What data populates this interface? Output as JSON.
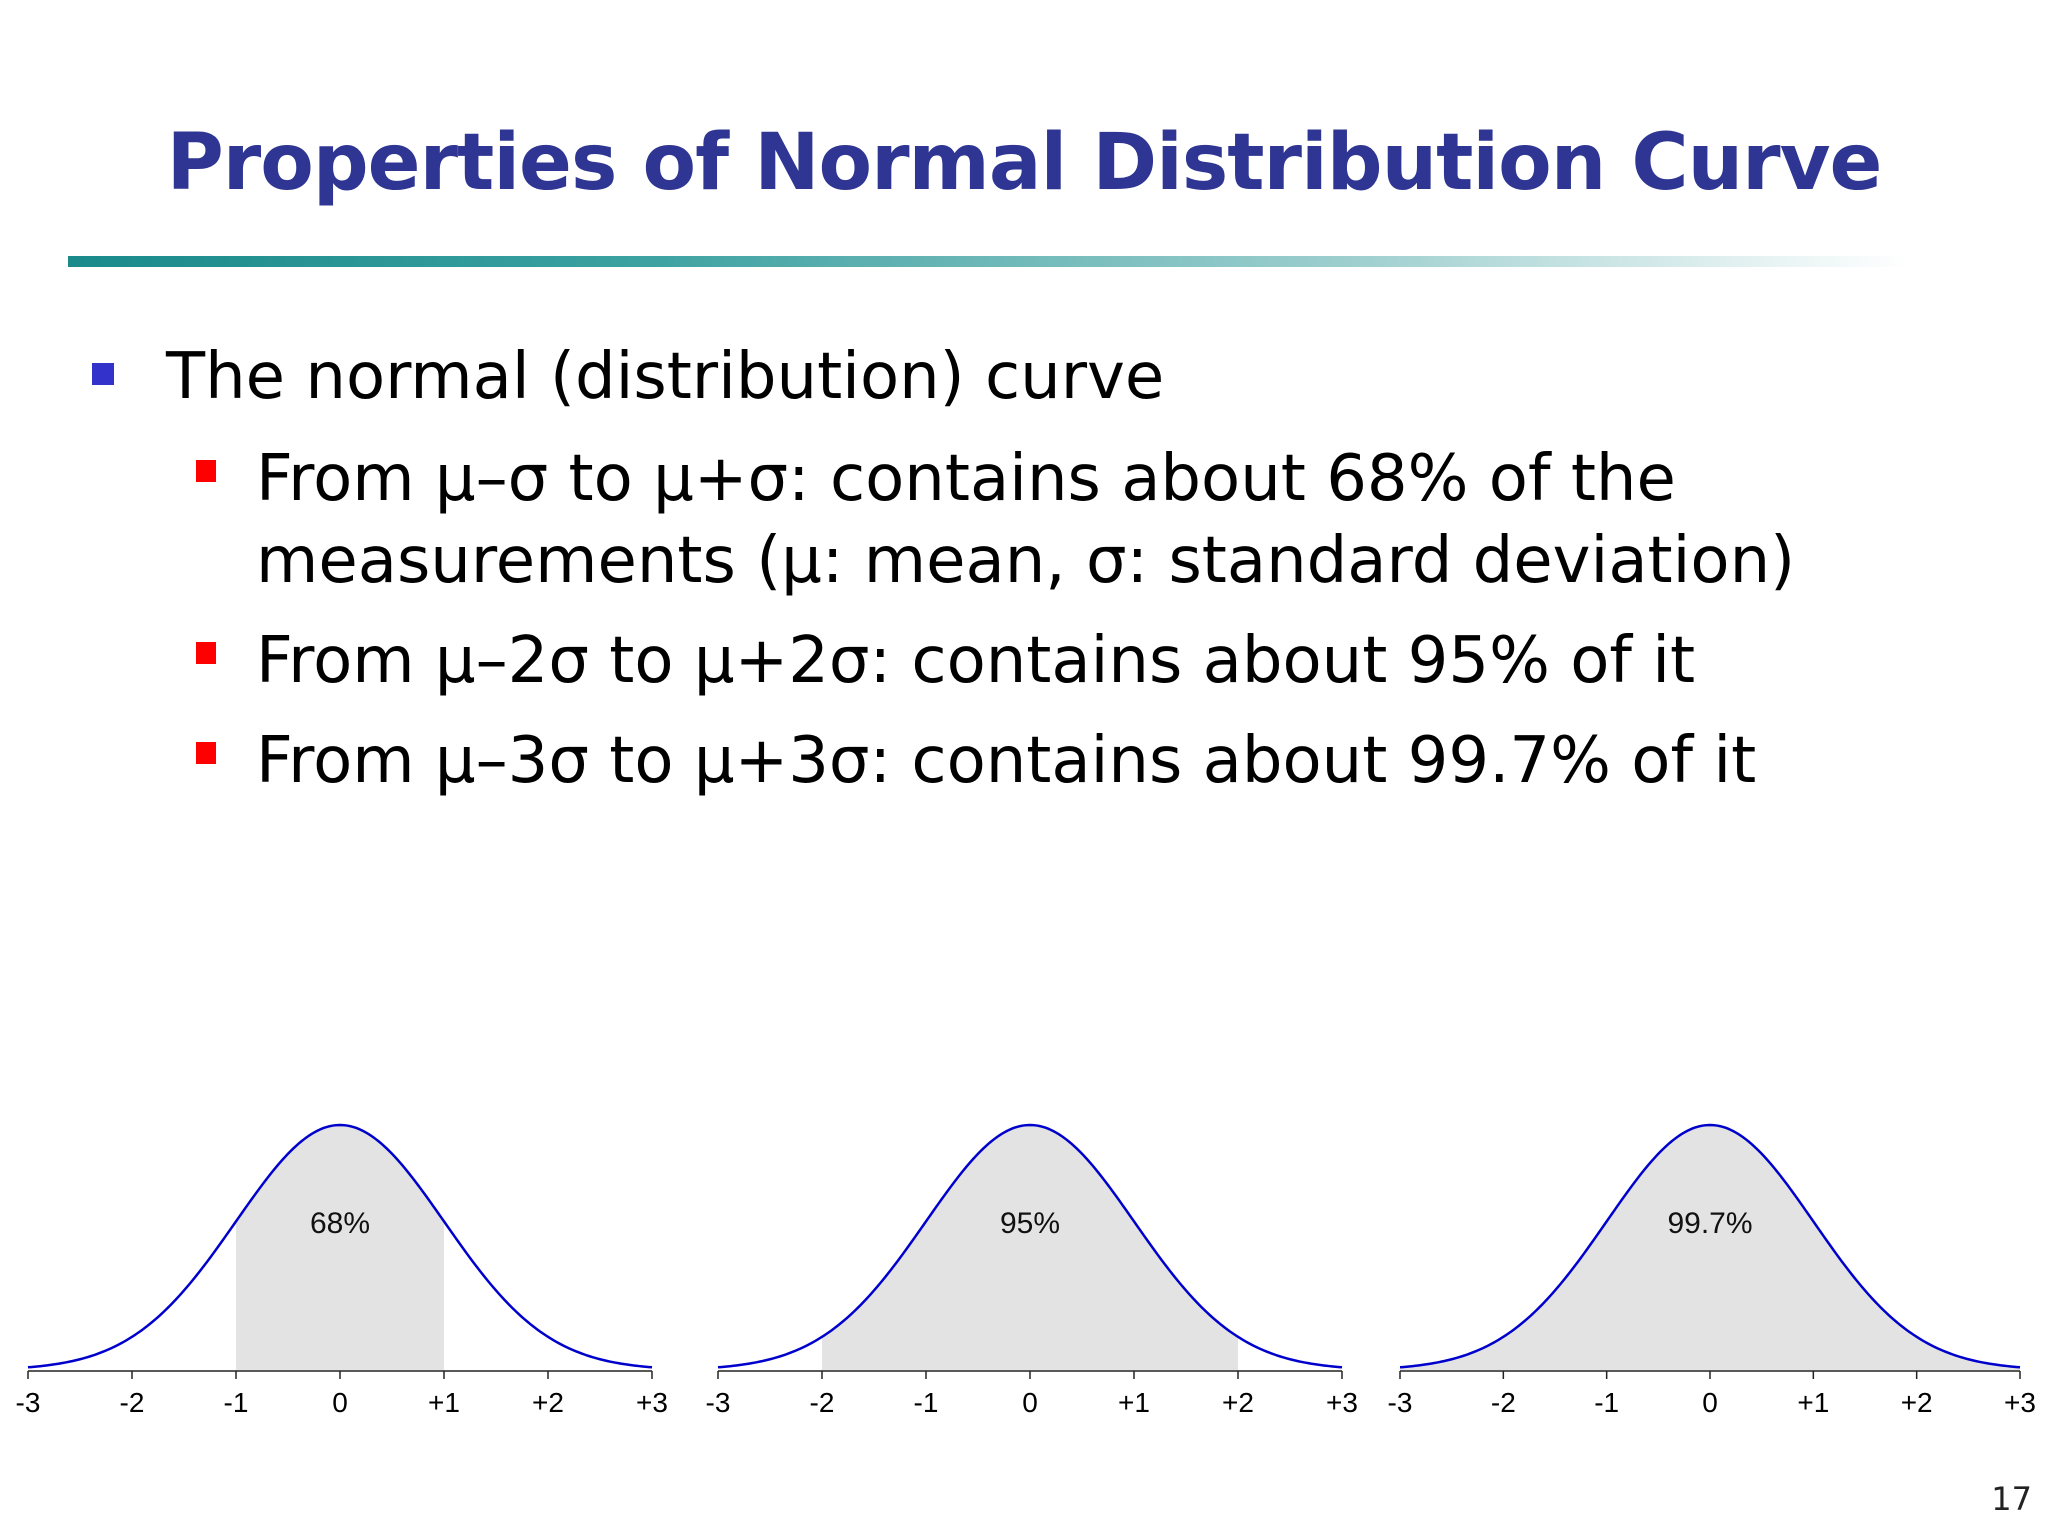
{
  "slide": {
    "title": "Properties of Normal Distribution Curve",
    "page_number": "17",
    "colors": {
      "title": "#2E3592",
      "bullet_level1": "#3333CC",
      "bullet_level2": "#FF0000",
      "curve": "#0000CC",
      "shade": "#E3E3E3",
      "rule": "#1A8A8A"
    },
    "bullets": {
      "level1": "The normal (distribution) curve",
      "items": [
        {
          "line1": "From μ–σ to μ+σ: contains about 68% of the",
          "line2": "measurements  (μ: mean, σ: standard deviation)"
        },
        {
          "line1": " From μ–2σ to μ+2σ: contains about 95% of it",
          "line2": ""
        },
        {
          "line1": "From μ–3σ to μ+3σ: contains about 99.7% of it",
          "line2": ""
        }
      ]
    }
  },
  "chart_data": [
    {
      "type": "area",
      "distribution": "standard normal",
      "x": [
        -3,
        -2.5,
        -2,
        -1.5,
        -1,
        -0.5,
        0,
        0.5,
        1,
        1.5,
        2,
        2.5,
        3
      ],
      "y": [
        0.004,
        0.018,
        0.054,
        0.13,
        0.242,
        0.352,
        0.399,
        0.352,
        0.242,
        0.13,
        0.054,
        0.018,
        0.004
      ],
      "shaded_range": [
        -1,
        1
      ],
      "annotation": "68%",
      "xlim": [
        -3,
        3
      ],
      "xtick_labels": [
        "-3",
        "-2",
        "-1",
        "0",
        "+1",
        "+2",
        "+3"
      ],
      "grid": false
    },
    {
      "type": "area",
      "distribution": "standard normal",
      "x": [
        -3,
        -2.5,
        -2,
        -1.5,
        -1,
        -0.5,
        0,
        0.5,
        1,
        1.5,
        2,
        2.5,
        3
      ],
      "y": [
        0.004,
        0.018,
        0.054,
        0.13,
        0.242,
        0.352,
        0.399,
        0.352,
        0.242,
        0.13,
        0.054,
        0.018,
        0.004
      ],
      "shaded_range": [
        -2,
        2
      ],
      "annotation": "95%",
      "xlim": [
        -3,
        3
      ],
      "xtick_labels": [
        "-3",
        "-2",
        "-1",
        "0",
        "+1",
        "+2",
        "+3"
      ],
      "grid": false
    },
    {
      "type": "area",
      "distribution": "standard normal",
      "x": [
        -3,
        -2.5,
        -2,
        -1.5,
        -1,
        -0.5,
        0,
        0.5,
        1,
        1.5,
        2,
        2.5,
        3
      ],
      "y": [
        0.004,
        0.018,
        0.054,
        0.13,
        0.242,
        0.352,
        0.399,
        0.352,
        0.242,
        0.13,
        0.054,
        0.018,
        0.004
      ],
      "shaded_range": [
        -3,
        3
      ],
      "annotation": "99.7%",
      "xlim": [
        -3,
        3
      ],
      "xtick_labels": [
        "-3",
        "-2",
        "-1",
        "0",
        "+1",
        "+2",
        "+3"
      ],
      "grid": false
    }
  ]
}
